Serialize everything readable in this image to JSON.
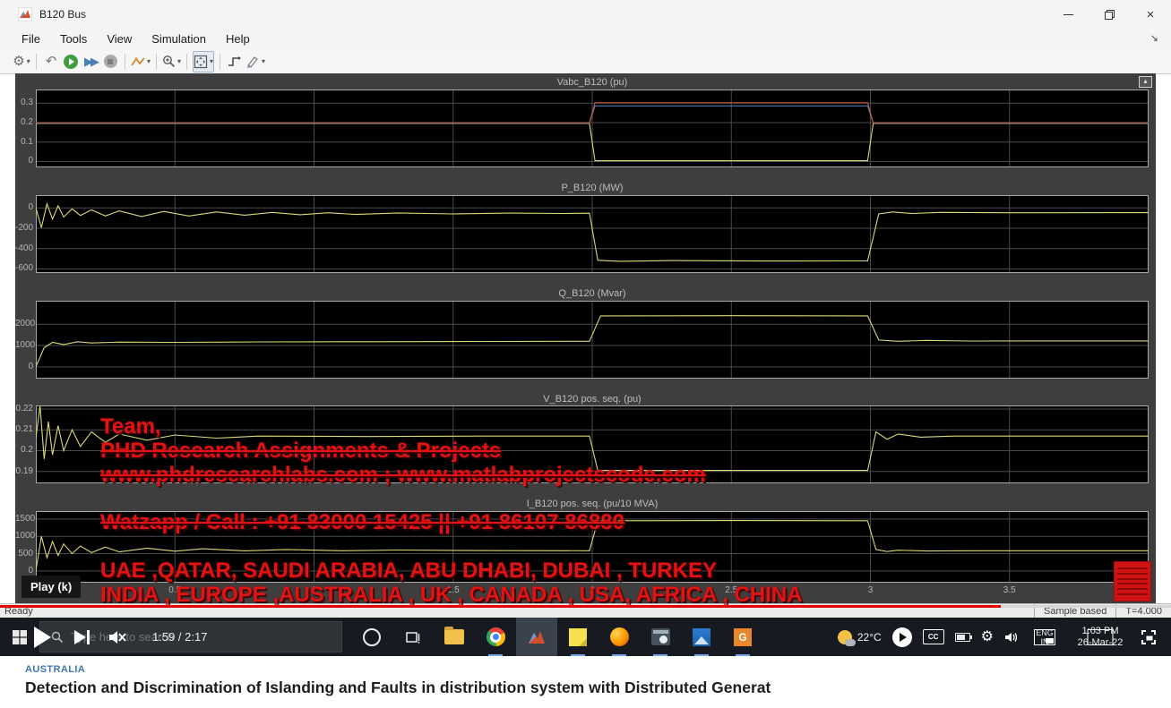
{
  "window": {
    "title": "B120 Bus",
    "menus": [
      "File",
      "Tools",
      "View",
      "Simulation",
      "Help"
    ]
  },
  "statusbar": {
    "ready": "Ready",
    "sample_based": "Sample based",
    "t_value": "T=4.000"
  },
  "player": {
    "tooltip": "Play (k)",
    "time": "1:59 / 2:17"
  },
  "taskbar": {
    "search_placeholder": "Type here to search",
    "app_g_label": "G",
    "tray": {
      "temperature": "22°C",
      "cc_label": "CC",
      "lang_top": "ENG",
      "lang_bottom": "IN",
      "time": "1:03 PM",
      "date": "26-Mar-22"
    }
  },
  "watermark": {
    "line1": "Team,",
    "line2": "PHD Research Assignments & Projects",
    "line3": "www.phdresearchlabs.com ; www.matlabprojectscode.com",
    "line4": "Watzapp / Call : +91 83000 15425 || +91 86107 86880",
    "line5": "UAE ,QATAR, SAUDI ARABIA, ABU DHABI, DUBAI , TURKEY",
    "line6": "INDIA , EUROPE ,AUSTRALIA , UK , CANADA , USA, AFRICA , CHINA"
  },
  "footer": {
    "kicker": "AUSTRALIA",
    "headline": "Detection and Discrimination of Islanding and Faults in distribution system with Distributed Generat"
  },
  "chart_data": [
    {
      "type": "line",
      "title": "Vabc_B120 (pu)",
      "xlim": [
        0,
        4
      ],
      "ylim": [
        -0.03,
        0.37
      ],
      "yticks": [
        0,
        0.1,
        0.2,
        0.3
      ],
      "xticks": [
        0.5,
        1,
        1.5,
        2,
        2.5,
        3,
        3.5
      ],
      "show_xticklabels": false,
      "grid": true,
      "series": [
        {
          "name": "phase-c",
          "color": "#d9d97a",
          "points": [
            [
              0,
              0.196
            ],
            [
              1.99,
              0.196
            ],
            [
              2.01,
              0.004
            ],
            [
              2.99,
              0.004
            ],
            [
              3.01,
              0.196
            ],
            [
              4,
              0.196
            ]
          ]
        },
        {
          "name": "phase-b",
          "color": "#5577bb",
          "points": [
            [
              0,
              0.198
            ],
            [
              1.99,
              0.198
            ],
            [
              2.01,
              0.286
            ],
            [
              2.99,
              0.286
            ],
            [
              3.01,
              0.198
            ],
            [
              4,
              0.198
            ]
          ]
        },
        {
          "name": "phase-a",
          "color": "#c1583c",
          "points": [
            [
              0,
              0.2
            ],
            [
              1.99,
              0.2
            ],
            [
              2.01,
              0.302
            ],
            [
              2.99,
              0.302
            ],
            [
              3.01,
              0.2
            ],
            [
              4,
              0.2
            ]
          ]
        }
      ]
    },
    {
      "type": "line",
      "title": "P_B120 (MW)",
      "xlim": [
        0,
        4
      ],
      "ylim": [
        -640,
        125
      ],
      "yticks": [
        0,
        -200,
        -400,
        -600
      ],
      "xticks": [
        0.5,
        1,
        1.5,
        2,
        2.5,
        3,
        3.5
      ],
      "show_xticklabels": false,
      "grid": true,
      "series": [
        {
          "name": "P",
          "color": "#d9d97a",
          "points": [
            [
              0,
              0
            ],
            [
              0.02,
              -195
            ],
            [
              0.04,
              40
            ],
            [
              0.06,
              -110
            ],
            [
              0.08,
              20
            ],
            [
              0.1,
              -90
            ],
            [
              0.13,
              -10
            ],
            [
              0.16,
              -75
            ],
            [
              0.2,
              -20
            ],
            [
              0.25,
              -80
            ],
            [
              0.3,
              -30
            ],
            [
              0.38,
              -85
            ],
            [
              0.46,
              -35
            ],
            [
              0.55,
              -80
            ],
            [
              0.65,
              -40
            ],
            [
              0.75,
              -72
            ],
            [
              0.85,
              -45
            ],
            [
              0.95,
              -68
            ],
            [
              1.05,
              -48
            ],
            [
              1.15,
              -65
            ],
            [
              1.3,
              -50
            ],
            [
              1.5,
              -60
            ],
            [
              1.7,
              -52
            ],
            [
              1.9,
              -55
            ],
            [
              1.99,
              -53
            ],
            [
              2.02,
              -515
            ],
            [
              2.1,
              -525
            ],
            [
              2.3,
              -518
            ],
            [
              2.6,
              -522
            ],
            [
              2.99,
              -520
            ],
            [
              3.03,
              -60
            ],
            [
              3.08,
              -40
            ],
            [
              3.15,
              -55
            ],
            [
              3.25,
              -45
            ],
            [
              3.5,
              -48
            ],
            [
              4,
              -47
            ]
          ]
        }
      ]
    },
    {
      "type": "line",
      "title": "Q_B120 (Mvar)",
      "xlim": [
        0,
        4
      ],
      "ylim": [
        -550,
        3100
      ],
      "yticks": [
        0,
        1000,
        2000
      ],
      "xticks": [
        0.5,
        1,
        1.5,
        2,
        2.5,
        3,
        3.5
      ],
      "show_xticklabels": false,
      "grid": true,
      "series": [
        {
          "name": "Q",
          "color": "#d9d97a",
          "points": [
            [
              0,
              0
            ],
            [
              0.03,
              900
            ],
            [
              0.06,
              1150
            ],
            [
              0.1,
              1050
            ],
            [
              0.15,
              1180
            ],
            [
              0.2,
              1120
            ],
            [
              0.3,
              1160
            ],
            [
              0.5,
              1150
            ],
            [
              0.8,
              1170
            ],
            [
              1.2,
              1180
            ],
            [
              1.6,
              1190
            ],
            [
              1.99,
              1200
            ],
            [
              2.03,
              2390
            ],
            [
              2.5,
              2400
            ],
            [
              2.99,
              2390
            ],
            [
              3.03,
              1260
            ],
            [
              3.1,
              1200
            ],
            [
              3.2,
              1240
            ],
            [
              3.35,
              1210
            ],
            [
              3.6,
              1215
            ],
            [
              4,
              1215
            ]
          ]
        }
      ]
    },
    {
      "type": "line",
      "title": "V_B120 pos. seq. (pu)",
      "xlim": [
        0,
        4
      ],
      "ylim": [
        0.1843,
        0.2217
      ],
      "yticks": [
        0.19,
        0.2,
        0.21,
        0.22
      ],
      "xticks": [
        0.5,
        1,
        1.5,
        2,
        2.5,
        3,
        3.5
      ],
      "show_xticklabels": false,
      "grid": true,
      "series": [
        {
          "name": "V1",
          "color": "#d9d97a",
          "points": [
            [
              0,
              0.206
            ],
            [
              0.015,
              0.2215
            ],
            [
              0.03,
              0.196
            ],
            [
              0.045,
              0.214
            ],
            [
              0.06,
              0.198
            ],
            [
              0.08,
              0.212
            ],
            [
              0.1,
              0.2
            ],
            [
              0.13,
              0.21
            ],
            [
              0.16,
              0.202
            ],
            [
              0.2,
              0.209
            ],
            [
              0.25,
              0.204
            ],
            [
              0.3,
              0.208
            ],
            [
              0.4,
              0.205
            ],
            [
              0.5,
              0.2075
            ],
            [
              0.65,
              0.206
            ],
            [
              0.8,
              0.207
            ],
            [
              1.2,
              0.2068
            ],
            [
              1.6,
              0.207
            ],
            [
              1.99,
              0.207
            ],
            [
              2.02,
              0.1905
            ],
            [
              2.99,
              0.1905
            ],
            [
              3.02,
              0.209
            ],
            [
              3.06,
              0.2055
            ],
            [
              3.1,
              0.208
            ],
            [
              3.18,
              0.2065
            ],
            [
              3.3,
              0.207
            ],
            [
              4,
              0.207
            ]
          ]
        }
      ]
    },
    {
      "type": "line",
      "title": "I_B120 pos. seq. (pu/10 MVA)",
      "xlim": [
        0,
        4
      ],
      "ylim": [
        -340,
        1730
      ],
      "yticks": [
        0,
        500,
        1000,
        1500
      ],
      "xticks": [
        0.5,
        1,
        1.5,
        2,
        2.5,
        3,
        3.5
      ],
      "show_xticklabels": true,
      "grid": true,
      "series": [
        {
          "name": "I1",
          "color": "#d9d97a",
          "points": [
            [
              0,
              0
            ],
            [
              0.02,
              1000
            ],
            [
              0.04,
              380
            ],
            [
              0.06,
              850
            ],
            [
              0.08,
              450
            ],
            [
              0.1,
              780
            ],
            [
              0.13,
              500
            ],
            [
              0.16,
              720
            ],
            [
              0.2,
              530
            ],
            [
              0.25,
              690
            ],
            [
              0.3,
              550
            ],
            [
              0.4,
              660
            ],
            [
              0.5,
              570
            ],
            [
              0.6,
              640
            ],
            [
              0.75,
              580
            ],
            [
              0.9,
              620
            ],
            [
              1.1,
              585
            ],
            [
              1.3,
              605
            ],
            [
              1.6,
              590
            ],
            [
              1.99,
              585
            ],
            [
              2.02,
              1450
            ],
            [
              2.5,
              1455
            ],
            [
              2.99,
              1450
            ],
            [
              3.02,
              620
            ],
            [
              3.06,
              560
            ],
            [
              3.1,
              600
            ],
            [
              3.2,
              575
            ],
            [
              3.4,
              585
            ],
            [
              4,
              583
            ]
          ]
        }
      ]
    }
  ]
}
